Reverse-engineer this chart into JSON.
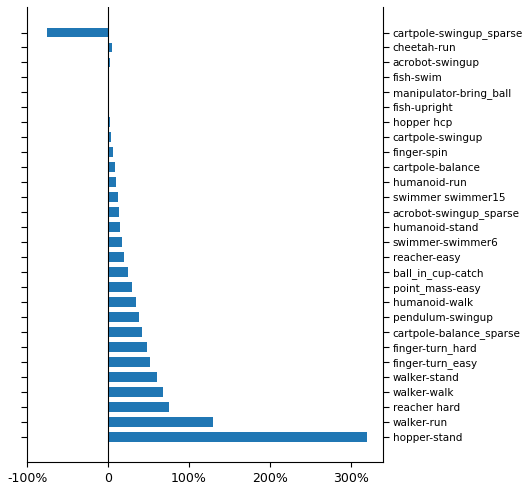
{
  "categories": [
    "cartpole-swingup_sparse",
    "cheetah-run",
    "acrobot-swingup",
    "fish-swim",
    "manipulator-bring_ball",
    "fish-upright",
    "hopper hcp",
    "cartpole-swingup",
    "finger-spin",
    "cartpole-balance",
    "humanoid-run",
    "swimmer swimmer15",
    "acrobot-swingup_sparse",
    "humanoid-stand",
    "swimmer-swimmer6",
    "reacher-easy",
    "ball_in_cup-catch",
    "point_mass-easy",
    "humanoid-walk",
    "pendulum-swingup",
    "cartpole-balance_sparse",
    "finger-turn_hard",
    "finger-turn_easy",
    "walker-stand",
    "walker-walk",
    "reacher hard",
    "walker-run",
    "hopper-stand"
  ],
  "values": [
    -75,
    5,
    3,
    0.5,
    -0.5,
    1,
    2,
    4,
    6,
    8,
    10,
    12,
    14,
    15,
    17,
    20,
    25,
    30,
    35,
    38,
    42,
    48,
    52,
    60,
    68,
    75,
    130,
    320
  ],
  "bar_color": "#2077b4",
  "xlim": [
    -100,
    340
  ],
  "xticks": [
    -100,
    0,
    100,
    200,
    300
  ],
  "xticklabels": [
    "-100%",
    "0",
    "100%",
    "200%",
    "300%"
  ],
  "figsize": [
    5.3,
    4.92
  ],
  "dpi": 100
}
